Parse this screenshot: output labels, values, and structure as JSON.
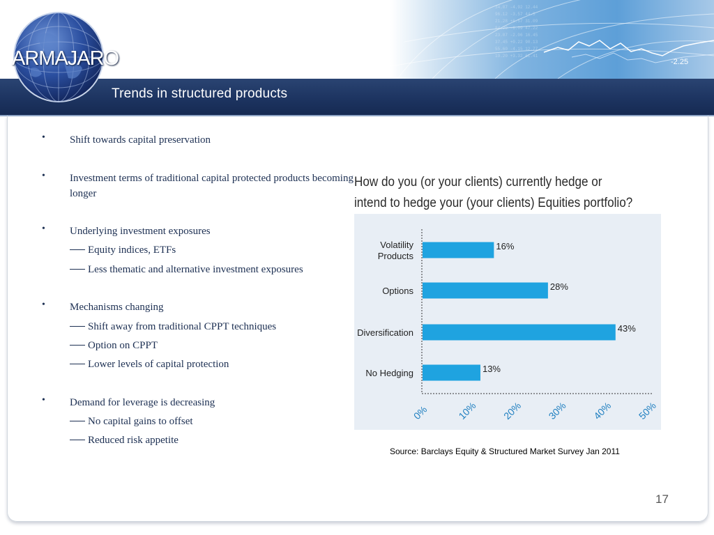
{
  "header": {
    "logo_text": "ARMAJARO",
    "title": "Trends in structured products",
    "banner_numbers": [
      "-2.25"
    ],
    "colors": {
      "title_bar": "#1d3461",
      "banner": "#5d9fd8"
    }
  },
  "bullets": [
    {
      "text": "Shift towards capital preservation",
      "subs": []
    },
    {
      "text": "Investment terms of traditional capital protected products becoming longer",
      "subs": []
    },
    {
      "text": "Underlying investment exposures",
      "subs": [
        "Equity indices, ETFs",
        "Less thematic and alternative investment exposures"
      ]
    },
    {
      "text": "Mechanisms changing",
      "subs": [
        "Shift away from traditional CPPT techniques",
        "Option on CPPT",
        "Lower levels of capital protection"
      ]
    },
    {
      "text": "Demand for leverage is decreasing",
      "subs": [
        "No capital gains to offset",
        "Reduced risk appetite"
      ]
    }
  ],
  "chart_data": {
    "type": "bar",
    "orientation": "horizontal",
    "title": "How do you (or your clients) currently hedge or intend to hedge your (your clients) Equities portfolio?",
    "categories": [
      "Volatility Products",
      "Options",
      "Diversification",
      "No Hedging"
    ],
    "values": [
      16,
      28,
      43,
      13
    ],
    "data_labels": [
      "16%",
      "28%",
      "43%",
      "13%"
    ],
    "x_ticks": [
      "0%",
      "10%",
      "20%",
      "30%",
      "40%",
      "50%"
    ],
    "xlim": [
      0,
      50
    ],
    "bar_color": "#1fa3e0",
    "background": "#e8eef5",
    "grid": false
  },
  "source": "Source: Barclays Equity & Structured Market Survey Jan 2011",
  "page_number": "17"
}
